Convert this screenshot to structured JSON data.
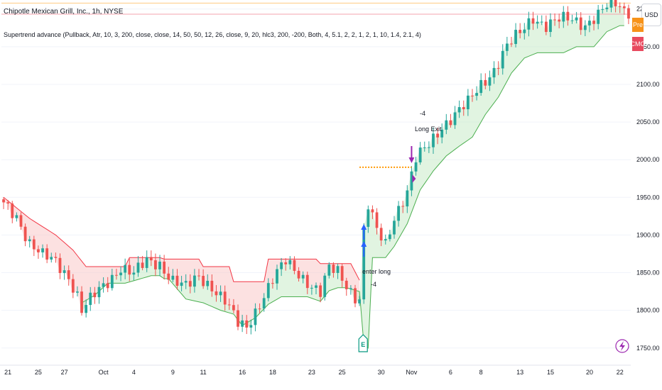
{
  "header": {
    "title": "Chipotle Mexican Grill, Inc., 1h, NYSE",
    "indicator": "Supertrend advance (Pullback, Atr, 10, 3, 200, close, close, 14, 50, 50, 12, 26, close, 9, 20, hlc3, 200, -200, Both, 4, 5.1, 2, 2, 1, 2, 1, 10, 1.4, 2.1, 4)",
    "currency": "USD"
  },
  "badges": {
    "pre": "Pre",
    "cmg": "CMG"
  },
  "events": {
    "earnings": "E",
    "flash_icon": "lightning-icon"
  },
  "colors": {
    "up": "#26a69a",
    "down": "#ef5350",
    "st_up": "#4caf50",
    "st_down": "#f23645",
    "st_up_fill": "#c8ebc8",
    "st_down_fill": "#f9c9c9",
    "target_line": "#ff9800",
    "exit_arrow": "#9c27b0",
    "entry_arrow": "#2962ff"
  },
  "chart_data": {
    "type": "candlestick",
    "ylim": [
      1730,
      2212
    ],
    "y_ticks": [
      1750,
      1800,
      1850,
      1900,
      1950,
      2000,
      2050,
      2100,
      2150,
      2200
    ],
    "y_tick_labels": [
      "1750.00",
      "1800.00",
      "1850.00",
      "1900.00",
      "1950.00",
      "2000.00",
      "2050.00",
      "2100.00",
      "2150.00",
      "2200.00"
    ],
    "x_labels": [
      "21",
      "25",
      "27",
      "Oct",
      "4",
      "9",
      "11",
      "16",
      "18",
      "23",
      "25",
      "30",
      "Nov",
      "6",
      "8",
      "13",
      "15",
      "20",
      "22"
    ],
    "x_label_bars": [
      1,
      8,
      14,
      23,
      30,
      39,
      46,
      55,
      62,
      71,
      78,
      87,
      94,
      103,
      110,
      119,
      126,
      135,
      142
    ],
    "n_bars": 145,
    "anchors": [
      [
        0,
        1940
      ],
      [
        3,
        1925
      ],
      [
        6,
        1890
      ],
      [
        9,
        1872
      ],
      [
        12,
        1864
      ],
      [
        15,
        1845
      ],
      [
        17,
        1820
      ],
      [
        18,
        1800
      ],
      [
        21,
        1820
      ],
      [
        24,
        1838
      ],
      [
        27,
        1858
      ],
      [
        30,
        1848
      ],
      [
        33,
        1865
      ],
      [
        36,
        1862
      ],
      [
        39,
        1840
      ],
      [
        42,
        1830
      ],
      [
        45,
        1845
      ],
      [
        48,
        1832
      ],
      [
        51,
        1812
      ],
      [
        54,
        1782
      ],
      [
        56,
        1778
      ],
      [
        59,
        1810
      ],
      [
        62,
        1840
      ],
      [
        65,
        1865
      ],
      [
        68,
        1850
      ],
      [
        71,
        1832
      ],
      [
        73,
        1822
      ],
      [
        75,
        1855
      ],
      [
        77,
        1852
      ],
      [
        79,
        1835
      ],
      [
        81,
        1818
      ],
      [
        82,
        1815
      ],
      [
        83,
        1905
      ],
      [
        84,
        1938
      ],
      [
        86,
        1905
      ],
      [
        88,
        1888
      ],
      [
        90,
        1925
      ],
      [
        93,
        1958
      ],
      [
        95,
        2000
      ],
      [
        98,
        2020
      ],
      [
        101,
        2045
      ],
      [
        104,
        2060
      ],
      [
        107,
        2075
      ],
      [
        110,
        2100
      ],
      [
        113,
        2120
      ],
      [
        116,
        2150
      ],
      [
        119,
        2168
      ],
      [
        122,
        2190
      ],
      [
        125,
        2178
      ],
      [
        128,
        2185
      ],
      [
        131,
        2187
      ],
      [
        134,
        2180
      ],
      [
        137,
        2192
      ],
      [
        140,
        2208
      ],
      [
        142,
        2205
      ],
      [
        143,
        2198
      ]
    ],
    "supertrend_down": [
      [
        0,
        1950
      ],
      [
        6,
        1922
      ],
      [
        12,
        1900
      ],
      [
        16,
        1880
      ],
      [
        19,
        1858
      ],
      [
        28,
        1858
      ],
      [
        29,
        1870
      ],
      [
        36,
        1870
      ],
      [
        37,
        1868
      ],
      [
        45,
        1868
      ],
      [
        46,
        1858
      ],
      [
        52,
        1858
      ],
      [
        53,
        1838
      ],
      [
        60,
        1838
      ],
      [
        61,
        1868
      ],
      [
        72,
        1868
      ],
      [
        73,
        1862
      ],
      [
        80,
        1862
      ],
      [
        82,
        1840
      ]
    ],
    "supertrend_up": [
      [
        18,
        1810
      ],
      [
        21,
        1820
      ],
      [
        24,
        1836
      ],
      [
        28,
        1836
      ],
      [
        34,
        1846
      ],
      [
        36,
        1846
      ],
      [
        37,
        1842
      ],
      [
        38,
        1842
      ],
      [
        42,
        1815
      ],
      [
        46,
        1810
      ],
      [
        50,
        1800
      ],
      [
        53,
        1795
      ],
      [
        55,
        1780
      ],
      [
        58,
        1790
      ],
      [
        61,
        1808
      ],
      [
        64,
        1818
      ],
      [
        70,
        1818
      ],
      [
        73,
        1812
      ],
      [
        75,
        1826
      ],
      [
        77,
        1830
      ],
      [
        79,
        1830
      ],
      [
        82,
        1825
      ],
      [
        83,
        1755
      ],
      [
        84,
        1750
      ],
      [
        85,
        1870
      ],
      [
        88,
        1870
      ],
      [
        90,
        1885
      ],
      [
        93,
        1915
      ],
      [
        96,
        1960
      ],
      [
        99,
        1985
      ],
      [
        102,
        2005
      ],
      [
        105,
        2018
      ],
      [
        108,
        2030
      ],
      [
        111,
        2060
      ],
      [
        114,
        2083
      ],
      [
        117,
        2115
      ],
      [
        120,
        2135
      ],
      [
        123,
        2142
      ],
      [
        129,
        2142
      ],
      [
        132,
        2150
      ],
      [
        136,
        2150
      ],
      [
        139,
        2170
      ],
      [
        142,
        2178
      ],
      [
        143,
        2178
      ]
    ],
    "target_level": 1990,
    "target_range": [
      82,
      94
    ],
    "entry_bar": 83,
    "exit_bar": 94,
    "annotations": {
      "exit_value": "-4",
      "exit_label": "Long Exit",
      "entry_label": "enter long",
      "entry_value": "-4"
    }
  }
}
